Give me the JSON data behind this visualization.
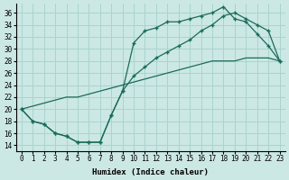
{
  "xlabel": "Humidex (Indice chaleur)",
  "bg_color": "#cce8e4",
  "grid_color": "#a8d4cf",
  "line_color": "#1a6b5a",
  "xlim": [
    -0.5,
    23.5
  ],
  "ylim": [
    13.0,
    37.5
  ],
  "xticks": [
    0,
    1,
    2,
    3,
    4,
    5,
    6,
    7,
    8,
    9,
    10,
    11,
    12,
    13,
    14,
    15,
    16,
    17,
    18,
    19,
    20,
    21,
    22,
    23
  ],
  "yticks": [
    14,
    16,
    18,
    20,
    22,
    24,
    26,
    28,
    30,
    32,
    34,
    36
  ],
  "curve_upper_x": [
    0,
    1,
    2,
    3,
    4,
    5,
    6,
    7,
    8,
    9,
    10,
    11,
    12,
    13,
    14,
    15,
    16,
    17,
    18,
    19,
    20,
    21,
    22,
    23
  ],
  "curve_upper_y": [
    20,
    18,
    17.5,
    16,
    15.5,
    14.5,
    14.5,
    14.5,
    19,
    23,
    31,
    33,
    33.5,
    34.5,
    34.5,
    35,
    35.5,
    36,
    37,
    35,
    34.5,
    32.5,
    30.5,
    28
  ],
  "curve_mid_x": [
    0,
    1,
    2,
    3,
    4,
    5,
    6,
    7,
    8,
    9,
    10,
    11,
    12,
    13,
    14,
    15,
    16,
    17,
    18,
    19,
    20,
    21,
    22,
    23
  ],
  "curve_mid_y": [
    20,
    18,
    17.5,
    16,
    15.5,
    14.5,
    14.5,
    14.5,
    19,
    23,
    25.5,
    27,
    28.5,
    29.5,
    30.5,
    31.5,
    33,
    34,
    35.5,
    36,
    35,
    34,
    33,
    28
  ],
  "diag_x": [
    0,
    1,
    2,
    3,
    4,
    5,
    6,
    7,
    8,
    9,
    10,
    11,
    12,
    13,
    14,
    15,
    16,
    17,
    18,
    19,
    20,
    21,
    22,
    23
  ],
  "diag_y": [
    20,
    20.5,
    21,
    21.5,
    22,
    22,
    22.5,
    23,
    23.5,
    24,
    24.5,
    25,
    25.5,
    26,
    26.5,
    27,
    27.5,
    28,
    28,
    28,
    28.5,
    28.5,
    28.5,
    28
  ]
}
